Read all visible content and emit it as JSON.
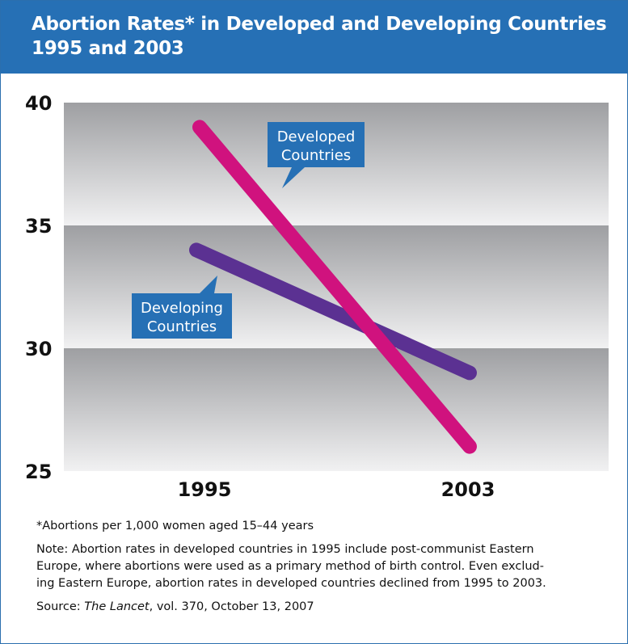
{
  "title_line1": "Abortion Rates* in Developed and Developing Countries",
  "title_line2": "1995 and 2003",
  "footnote": "*Abortions per 1,000 women aged 15–44 years",
  "note_line1": "Note: Abortion rates in developed countries in 1995 include post-communist Eastern",
  "note_line2": "Europe, where abortions were used as a primary method of birth control. Even exclud-",
  "note_line3": "ing Eastern Europe, abortion rates in developed countries declined from 1995 to 2003.",
  "source_prefix": "Source: ",
  "source_title": "The Lancet",
  "source_rest": ", vol. 370, October 13, 2007",
  "chart_data": {
    "type": "line",
    "categories": [
      "1995",
      "2003"
    ],
    "ylim": [
      25,
      40
    ],
    "yticks": [
      25,
      30,
      35,
      40
    ],
    "series": [
      {
        "name": "Developed Countries",
        "name_line1": "Developed",
        "name_line2": "Countries",
        "values": [
          39,
          26
        ],
        "color": "#d0127e"
      },
      {
        "name": "Developing Countries",
        "name_line1": "Developing",
        "name_line2": "Countries",
        "values": [
          34,
          29
        ],
        "color": "#5b3192"
      }
    ],
    "label_color": "#2670b5",
    "grid": true
  }
}
